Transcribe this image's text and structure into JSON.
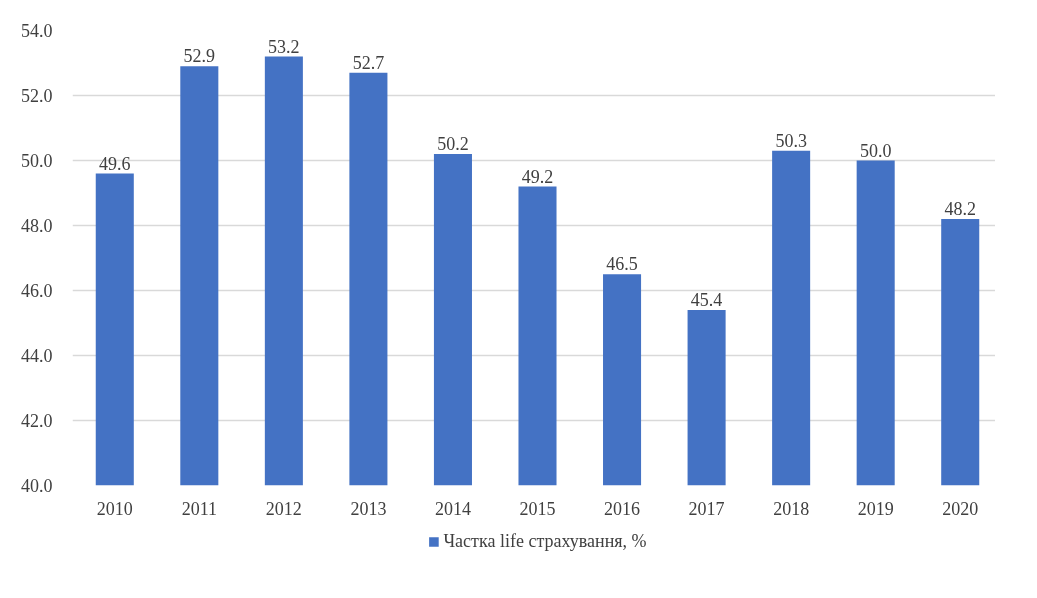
{
  "chart_data": {
    "type": "bar",
    "categories": [
      "2010",
      "2011",
      "2012",
      "2013",
      "2014",
      "2015",
      "2016",
      "2017",
      "2018",
      "2019",
      "2020"
    ],
    "series": [
      {
        "name": "Частка life страхування, %",
        "color": "#4472c4",
        "values": [
          49.6,
          52.9,
          53.2,
          52.7,
          50.2,
          49.2,
          46.5,
          45.4,
          50.3,
          50.0,
          48.2
        ],
        "value_labels": [
          "49.6",
          "52.9",
          "53.2",
          "52.7",
          "50.2",
          "49.2",
          "46.5",
          "45.4",
          "50.3",
          "50.0",
          "48.2"
        ]
      }
    ],
    "ylim": [
      40,
      54
    ],
    "yticks": [
      {
        "value": 40,
        "label": "40.0"
      },
      {
        "value": 42,
        "label": "42.0"
      },
      {
        "value": 44,
        "label": "44.0"
      },
      {
        "value": 46,
        "label": "46.0"
      },
      {
        "value": 48,
        "label": "48.0"
      },
      {
        "value": 50,
        "label": "50.0"
      },
      {
        "value": 52,
        "label": "52.0"
      },
      {
        "value": 54,
        "label": "54.0"
      }
    ],
    "grid": "y",
    "legend": "bottom"
  }
}
